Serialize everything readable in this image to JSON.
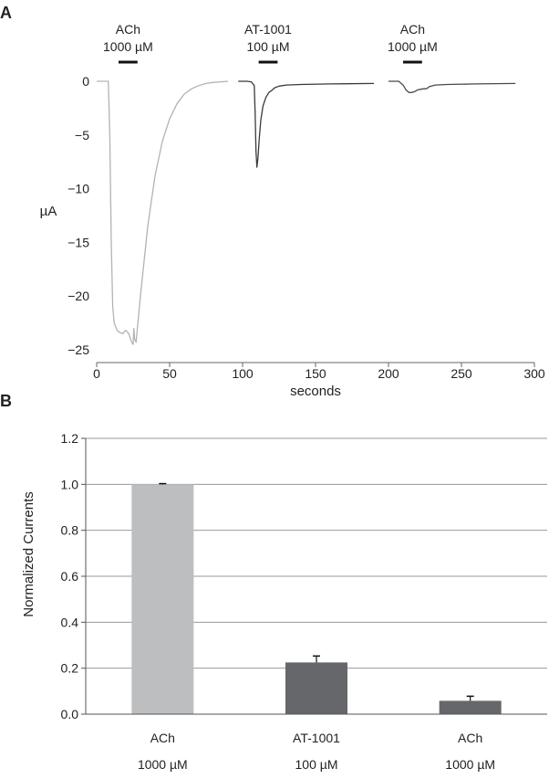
{
  "chart_data": [
    {
      "panel_label": "A",
      "type": "line",
      "xlabel": "seconds",
      "ylabel": "µA",
      "xlim": [
        0,
        300
      ],
      "ylim": [
        -25,
        0
      ],
      "xticks": [
        0,
        50,
        100,
        150,
        200,
        250,
        300
      ],
      "yticks": [
        0,
        -5,
        -10,
        -15,
        -20,
        -25
      ],
      "grid": false,
      "series": [
        {
          "color": "#b3b3b3",
          "x": [
            0,
            8,
            9,
            10,
            11,
            12,
            14,
            16,
            18,
            19,
            20,
            22,
            24,
            25,
            25.5,
            26,
            27,
            30,
            35,
            40,
            45,
            50,
            55,
            60,
            65,
            70,
            75,
            80,
            85,
            90
          ],
          "y": [
            0,
            0,
            -5,
            -15,
            -21,
            -22.5,
            -23.2,
            -23.4,
            -23.5,
            -23.3,
            -23.2,
            -23.5,
            -24.3,
            -24.5,
            -23.0,
            -24.0,
            -24.3,
            -20.0,
            -13.5,
            -8.8,
            -5.6,
            -3.5,
            -2.1,
            -1.2,
            -0.7,
            -0.4,
            -0.2,
            -0.1,
            -0.05,
            0
          ]
        },
        {
          "color": "#3a3a3a",
          "x": [
            97,
            103,
            106,
            108,
            108.6,
            109.2,
            109.8,
            110.5,
            111.5,
            112.5,
            114,
            116,
            118,
            120,
            122,
            125,
            130,
            140,
            160,
            190
          ],
          "y": [
            0,
            0,
            -0.05,
            -0.4,
            -3.0,
            -6.5,
            -8.0,
            -7.2,
            -5.2,
            -3.6,
            -2.3,
            -1.5,
            -1.05,
            -0.85,
            -0.6,
            -0.45,
            -0.35,
            -0.3,
            -0.25,
            -0.2
          ]
        },
        {
          "color": "#4a4a4a",
          "x": [
            200,
            207,
            210,
            212,
            214,
            216,
            218,
            220,
            222,
            224,
            226,
            228,
            232,
            240,
            260,
            287
          ],
          "y": [
            0,
            0,
            -0.35,
            -0.8,
            -1.05,
            -1.05,
            -0.95,
            -0.8,
            -0.75,
            -0.7,
            -0.7,
            -0.5,
            -0.35,
            -0.3,
            -0.25,
            -0.2
          ]
        }
      ],
      "annotations": [
        {
          "name": "ACh",
          "conc": "1000 µM",
          "bar_x": [
            15,
            28
          ]
        },
        {
          "name": "AT-1001",
          "conc": "100 µM",
          "bar_x": [
            111,
            124
          ]
        },
        {
          "name": "ACh",
          "conc": "1000 µM",
          "bar_x": [
            210,
            223
          ]
        }
      ]
    },
    {
      "panel_label": "B",
      "type": "bar",
      "ylabel": "Normalized Currents",
      "ylim": [
        0,
        1.2
      ],
      "yticks": [
        "0.0",
        "0.2",
        "0.4",
        "0.6",
        "0.8",
        "1.0",
        "1.2"
      ],
      "grid": true,
      "categories": [
        {
          "name": "ACh",
          "conc": "1000 µM"
        },
        {
          "name": "AT-1001",
          "conc": "100 µM"
        },
        {
          "name": "ACh",
          "conc": "1000 µM"
        }
      ],
      "values": [
        1.0,
        0.225,
        0.058
      ],
      "errors": [
        0.003,
        0.028,
        0.02
      ],
      "colors": [
        "#bdbec0",
        "#66676b",
        "#66676b"
      ]
    }
  ]
}
